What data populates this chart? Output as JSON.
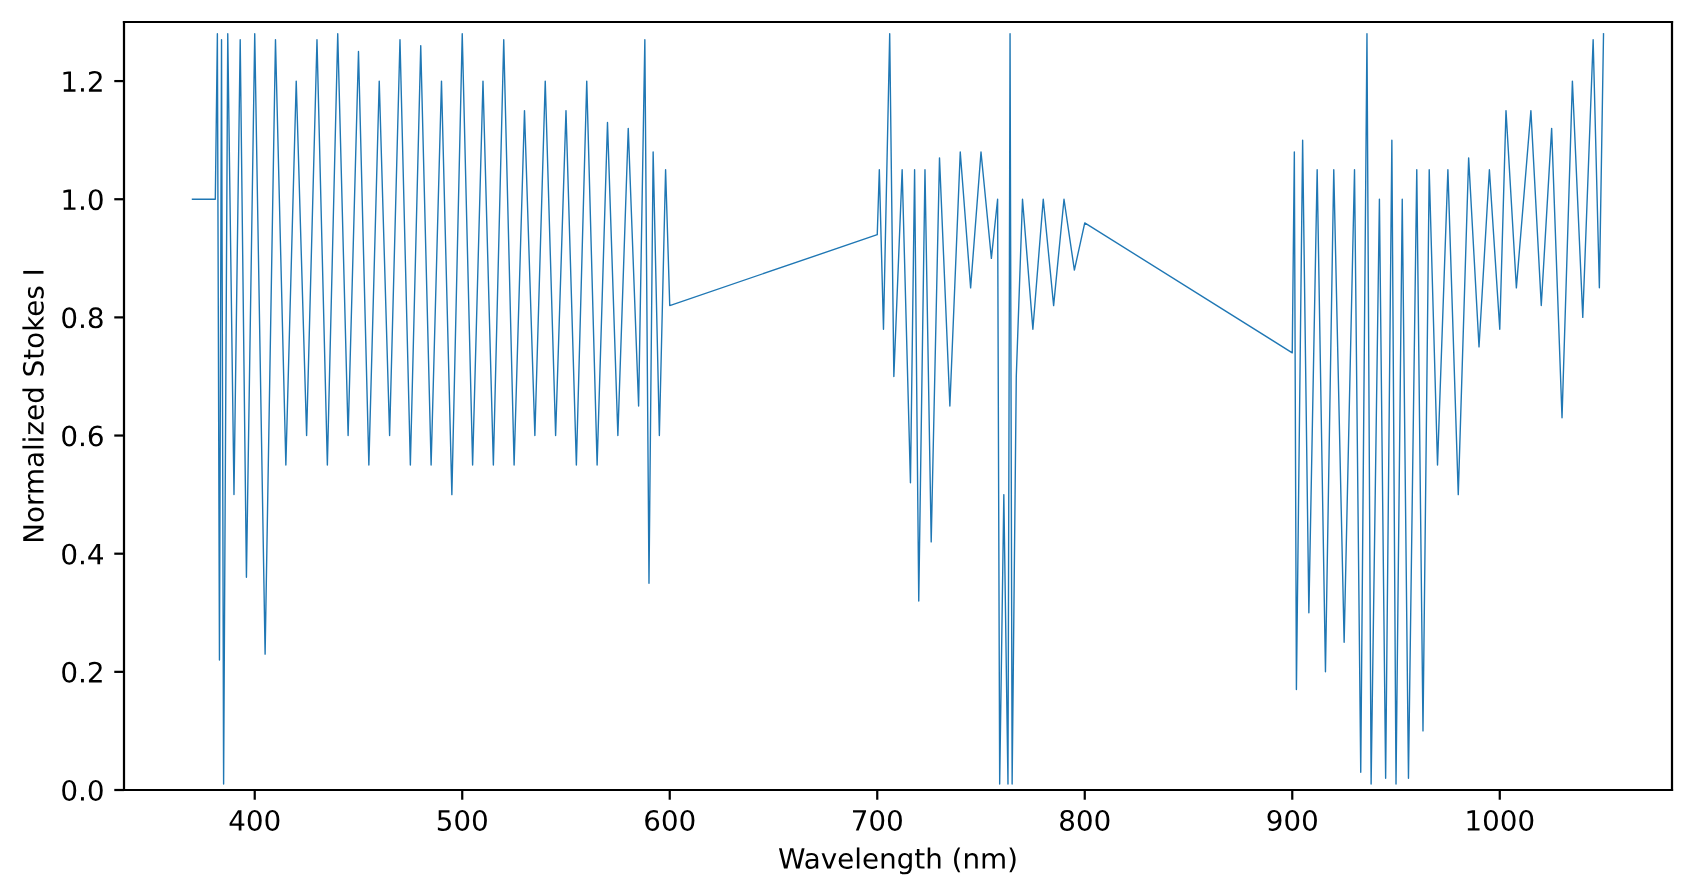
{
  "chart_data": {
    "type": "line",
    "xlabel": "Wavelength (nm)",
    "ylabel": "Normalized Stokes I",
    "xlim": [
      337,
      1083
    ],
    "ylim": [
      0,
      1.3
    ],
    "xticks": [
      400,
      500,
      600,
      700,
      800,
      900,
      1000
    ],
    "yticks": [
      {
        "value": 0,
        "label": "0.0"
      },
      0.2,
      0.4,
      0.6,
      0.8,
      {
        "value": 1,
        "label": "1.0"
      },
      1.2
    ],
    "grid": false,
    "marker": "none",
    "line_style": "solid",
    "series": [
      {
        "color": "#1f77b4",
        "x": [
          370,
          381,
          382,
          383,
          384,
          385,
          387,
          390,
          393,
          396,
          400,
          405,
          410,
          415,
          420,
          425,
          430,
          435,
          440,
          445,
          450,
          455,
          460,
          465,
          470,
          475,
          480,
          485,
          490,
          495,
          500,
          505,
          510,
          515,
          520,
          525,
          530,
          535,
          540,
          545,
          550,
          555,
          560,
          565,
          570,
          575,
          580,
          585,
          588,
          590,
          592,
          595,
          598,
          600,
          700,
          701,
          703,
          706,
          708,
          712,
          716,
          718,
          720,
          723,
          726,
          730,
          735,
          740,
          745,
          750,
          755,
          758,
          759,
          761,
          763,
          764,
          765,
          767,
          770,
          775,
          780,
          785,
          790,
          795,
          800,
          900,
          901,
          902,
          905,
          908,
          912,
          916,
          920,
          925,
          930,
          933,
          936,
          938,
          942,
          945,
          948,
          950,
          953,
          956,
          960,
          963,
          966,
          970,
          975,
          980,
          985,
          990,
          995,
          1000,
          1003,
          1008,
          1015,
          1020,
          1025,
          1030,
          1035,
          1040,
          1045,
          1048,
          1050
        ],
        "values": [
          1.0,
          1.0,
          1.28,
          0.22,
          1.27,
          0.01,
          1.28,
          0.5,
          1.27,
          0.36,
          1.28,
          0.23,
          1.27,
          0.55,
          1.2,
          0.6,
          1.27,
          0.55,
          1.28,
          0.6,
          1.25,
          0.55,
          1.2,
          0.6,
          1.27,
          0.55,
          1.26,
          0.55,
          1.2,
          0.5,
          1.28,
          0.55,
          1.2,
          0.55,
          1.27,
          0.55,
          1.15,
          0.6,
          1.2,
          0.6,
          1.15,
          0.55,
          1.2,
          0.55,
          1.13,
          0.6,
          1.12,
          0.65,
          1.27,
          0.35,
          1.08,
          0.6,
          1.05,
          0.82,
          0.94,
          1.05,
          0.78,
          1.28,
          0.7,
          1.05,
          0.52,
          1.05,
          0.32,
          1.05,
          0.42,
          1.07,
          0.65,
          1.08,
          0.85,
          1.08,
          0.9,
          1.0,
          0.01,
          0.5,
          0.01,
          1.28,
          0.01,
          0.7,
          1.0,
          0.78,
          1.0,
          0.82,
          1.0,
          0.88,
          0.96,
          0.74,
          1.08,
          0.17,
          1.1,
          0.3,
          1.05,
          0.2,
          1.05,
          0.25,
          1.05,
          0.03,
          1.28,
          0.01,
          1.0,
          0.02,
          1.1,
          0.01,
          1.0,
          0.02,
          1.05,
          0.1,
          1.05,
          0.55,
          1.05,
          0.5,
          1.07,
          0.75,
          1.05,
          0.78,
          1.15,
          0.85,
          1.15,
          0.82,
          1.12,
          0.63,
          1.2,
          0.8,
          1.27,
          0.85,
          1.28
        ]
      }
    ]
  }
}
